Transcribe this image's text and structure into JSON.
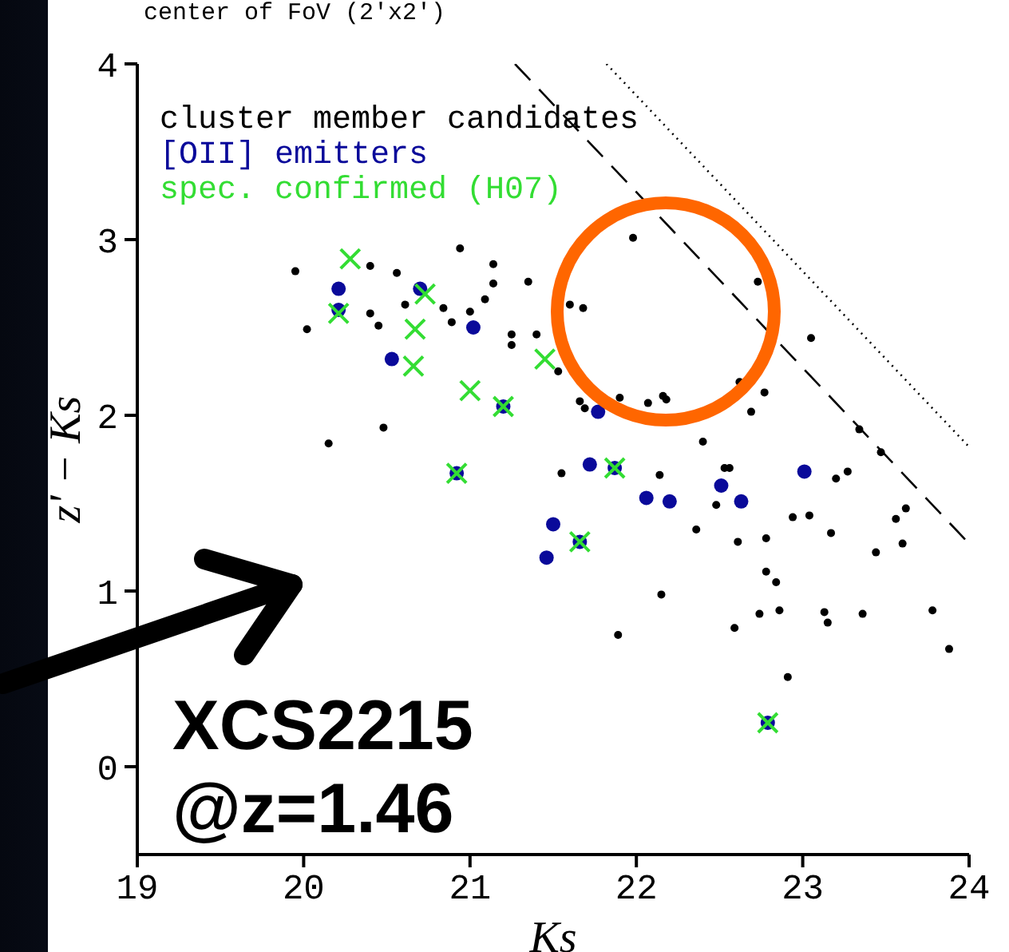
{
  "chart_data": {
    "type": "scatter",
    "title": "center of FoV (2'x2')",
    "xlabel": "Ks",
    "ylabel": "z' − Ks",
    "xlim": [
      19,
      24
    ],
    "ylim": [
      -0.5,
      4
    ],
    "xticks": [
      19,
      20,
      21,
      22,
      23,
      24
    ],
    "yticks": [
      0,
      1,
      2,
      3,
      4
    ],
    "grid": false,
    "legend": "top left",
    "annotations": [
      "XCS2215",
      "@z=1.46"
    ],
    "series": [
      {
        "name": "cluster member candidates",
        "color": "#000000",
        "marker": "circle",
        "x": [
          19.95,
          20.02,
          20.15,
          20.48,
          20.4,
          20.56,
          20.4,
          20.45,
          20.61,
          20.84,
          20.89,
          20.94,
          21.0,
          21.09,
          21.14,
          21.14,
          21.25,
          21.25,
          21.35,
          21.4,
          21.55,
          21.53,
          21.98,
          21.6,
          21.68,
          22.73,
          23.05,
          22.62,
          22.77,
          21.66,
          21.69,
          21.9,
          22.07,
          22.16,
          22.18,
          22.69,
          23.34,
          23.47,
          22.4,
          22.14,
          22.53,
          22.56,
          23.2,
          23.27,
          22.48,
          23.62,
          22.94,
          23.04,
          23.56,
          22.36,
          22.61,
          22.78,
          23.17,
          23.6,
          23.44,
          22.78,
          22.84,
          22.15,
          22.74,
          22.86,
          23.13,
          23.15,
          23.36,
          23.78,
          22.59,
          21.89,
          23.88,
          22.91
        ],
        "values": [
          2.82,
          2.49,
          1.84,
          1.93,
          2.85,
          2.81,
          2.58,
          2.51,
          2.63,
          2.61,
          2.53,
          2.95,
          2.59,
          2.66,
          2.86,
          2.75,
          2.46,
          2.4,
          2.76,
          2.46,
          1.67,
          2.25,
          3.01,
          2.63,
          2.61,
          2.76,
          2.44,
          2.19,
          2.13,
          2.08,
          2.04,
          2.1,
          2.07,
          2.11,
          2.09,
          2.02,
          1.92,
          1.79,
          1.85,
          1.66,
          1.7,
          1.7,
          1.64,
          1.68,
          1.49,
          1.47,
          1.42,
          1.43,
          1.41,
          1.35,
          1.28,
          1.3,
          1.33,
          1.27,
          1.22,
          1.11,
          1.05,
          0.98,
          0.87,
          0.89,
          0.88,
          0.82,
          0.87,
          0.89,
          0.79,
          0.75,
          0.67,
          0.51
        ]
      },
      {
        "name": "[OII] emitters",
        "color": "#0a0a9a",
        "marker": "circle",
        "x": [
          20.21,
          20.21,
          20.7,
          21.02,
          20.53,
          21.2,
          20.92,
          21.77,
          21.72,
          21.87,
          22.06,
          22.2,
          22.51,
          22.63,
          23.01,
          21.5,
          21.46,
          21.66,
          22.79
        ],
        "values": [
          2.72,
          2.6,
          2.72,
          2.5,
          2.32,
          2.05,
          1.67,
          2.02,
          1.72,
          1.7,
          1.53,
          1.51,
          1.6,
          1.51,
          1.68,
          1.38,
          1.19,
          1.28,
          0.25
        ]
      },
      {
        "name": "spec. confirmed (H07)",
        "color": "#33dd33",
        "marker": "cross",
        "x": [
          20.28,
          20.21,
          20.73,
          20.67,
          20.66,
          21.0,
          21.2,
          20.92,
          21.45,
          21.87,
          21.66,
          22.79
        ],
        "values": [
          2.89,
          2.58,
          2.69,
          2.49,
          2.28,
          2.14,
          2.05,
          1.67,
          2.32,
          1.7,
          1.28,
          0.25
        ]
      },
      {
        "type": "line",
        "color": "#000000",
        "line_style": "dashed",
        "marker": "none",
        "x": [
          21.27,
          24
        ],
        "values": [
          4,
          1.27
        ]
      },
      {
        "type": "line",
        "color": "#000000",
        "line_style": "dotted",
        "marker": "none",
        "x": [
          21.82,
          24
        ],
        "values": [
          4,
          1.82
        ]
      }
    ]
  }
}
